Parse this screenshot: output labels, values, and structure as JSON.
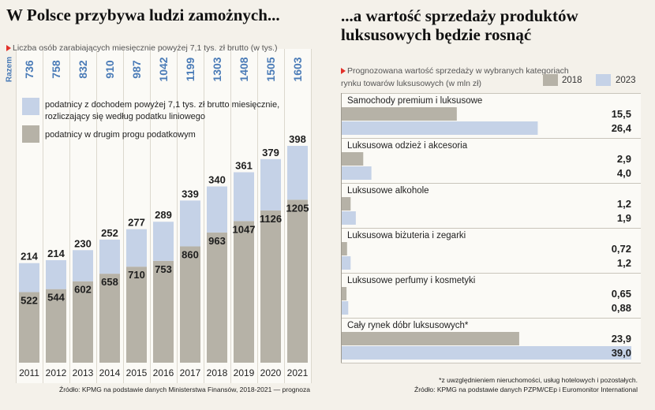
{
  "accent_color": "#e2312a",
  "chart_data": [
    {
      "type": "bar",
      "stacked": true,
      "title": "W Polsce przybywa ludzi zamożnych...",
      "subtitle": "Liczba osób zarabiających miesięcznie powyżej 7,1 tys. zł brutto (w tys.)",
      "categories": [
        "2011",
        "2012",
        "2013",
        "2014",
        "2015",
        "2016",
        "2017",
        "2018",
        "2019",
        "2020",
        "2021"
      ],
      "series": [
        {
          "name": "podatnicy w drugim progu podatkowym",
          "color": "#b6b2a7",
          "values": [
            522,
            544,
            602,
            658,
            710,
            753,
            860,
            963,
            1047,
            1126,
            1205
          ]
        },
        {
          "name": "podatnicy z dochodem powyżej 7,1 tys. zł brutto miesięcznie,\nrozliczający się według podatku liniowego",
          "color": "#c5d2e7",
          "values": [
            214,
            214,
            230,
            252,
            277,
            289,
            339,
            340,
            361,
            379,
            398
          ]
        }
      ],
      "totals_label": "Razem",
      "totals": [
        736,
        758,
        832,
        910,
        987,
        1042,
        1199,
        1303,
        1408,
        1505,
        1603
      ],
      "totals_color": "#4a7bb7",
      "legend_position": "top-left",
      "source": "Źródło: KPMG na podstawie danych Ministerstwa Finansów, 2018-2021 — prognoza"
    },
    {
      "type": "bar",
      "orientation": "horizontal",
      "title": "...a wartość sprzedaży produktów\nluksusowych będzie rosnąć",
      "subtitle": "Prognozowana wartość sprzedaży w wybranych kategoriach\nrynku towarów luksusowych (w mln zł)",
      "categories": [
        "Samochody premium i luksusowe",
        "Luksusowa odzież i akcesoria",
        "Luksusowe alkohole",
        "Luksusowa biżuteria i zegarki",
        "Luksusowe perfumy i kosmetyki",
        "Cały rynek dóbr luksusowych*"
      ],
      "series": [
        {
          "name": "2018",
          "color": "#b6b2a7",
          "values": [
            15.5,
            2.9,
            1.2,
            0.72,
            0.65,
            23.9
          ],
          "labels": [
            "15,5",
            "2,9",
            "1,2",
            "0,72",
            "0,65",
            "23,9"
          ]
        },
        {
          "name": "2023",
          "color": "#c5d2e7",
          "values": [
            26.4,
            4.0,
            1.9,
            1.2,
            0.88,
            39.0
          ],
          "labels": [
            "26,4",
            "4,0",
            "1,9",
            "1,2",
            "0,88",
            "39,0"
          ]
        }
      ],
      "legend_position": "top-right",
      "footnote": "*z uwzględnieniem nieruchomości, usług hotelowych i pozostałych.",
      "source": "Źródło: KPMG na podstawie danych PZPM/CEp i Euromonitor International"
    }
  ]
}
